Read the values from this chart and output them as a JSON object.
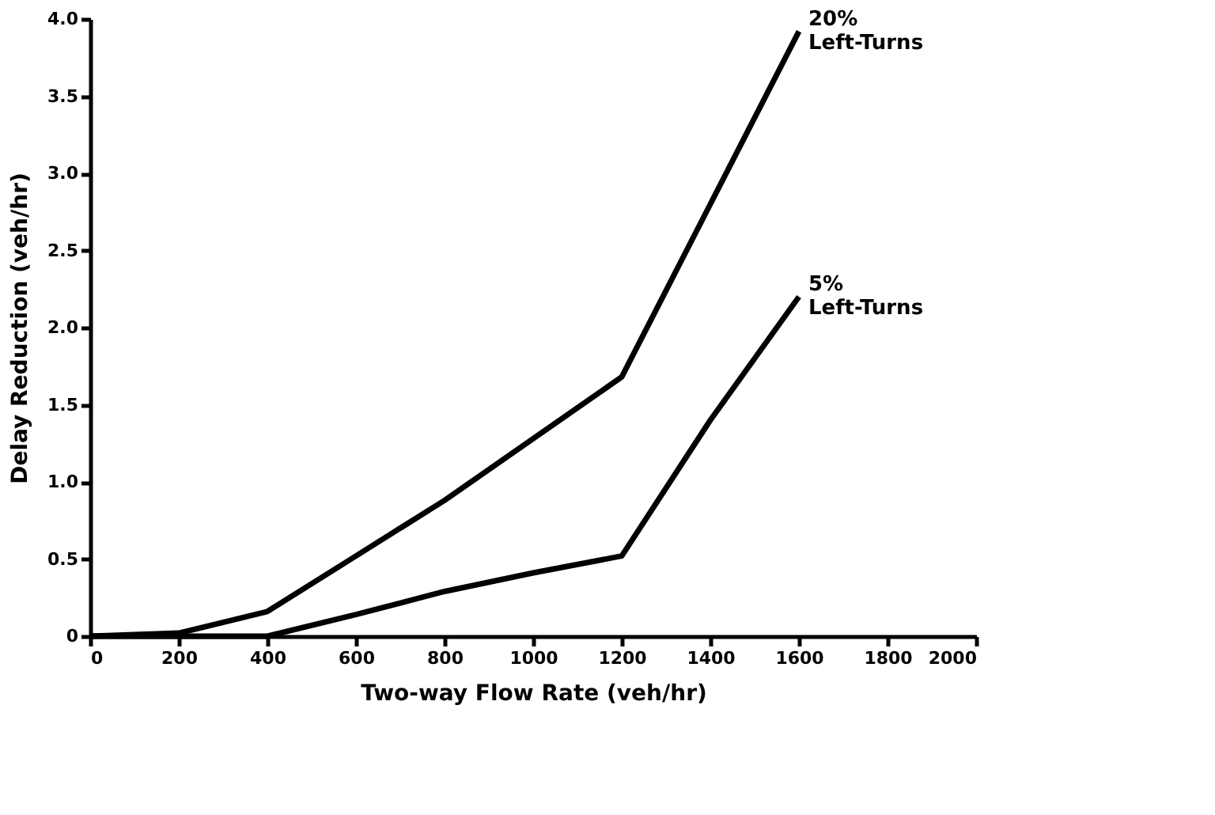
{
  "chart_data": {
    "type": "line",
    "xlabel": "Two-way Flow Rate (veh/hr)",
    "ylabel": "Delay Reduction (veh/hr)",
    "xlim": [
      0,
      2000
    ],
    "xticks": [
      0,
      200,
      400,
      600,
      800,
      1000,
      1200,
      1400,
      1600,
      1800,
      2000
    ],
    "ylim": [
      0,
      4
    ],
    "yticks": [
      0,
      {
        "value": 0.5,
        "label": "0.5"
      },
      {
        "value": 1,
        "label": "1.0"
      },
      {
        "value": 1.5,
        "label": "1.5"
      },
      {
        "value": 2,
        "label": "2.0"
      },
      {
        "value": 2.5,
        "label": "2.5"
      },
      {
        "value": 3,
        "label": "3.0"
      },
      {
        "value": 3.5,
        "label": "3.5"
      },
      {
        "value": 4,
        "label": "4.0"
      }
    ],
    "grid": false,
    "legend": false,
    "marker": "none",
    "line_style": "solid",
    "series": [
      {
        "name": "20% Left-Turns",
        "color": "#000000",
        "x": [
          0,
          200,
          400,
          600,
          800,
          1000,
          1200,
          1400,
          1600
        ],
        "values": [
          0,
          0.02,
          0.16,
          0.52,
          0.88,
          1.28,
          1.68,
          2.8,
          3.92
        ]
      },
      {
        "name": "5% Left-Turns",
        "color": "#000000",
        "x": [
          0,
          400,
          600,
          800,
          1000,
          1200,
          1400,
          1600
        ],
        "values": [
          0,
          0,
          0.14,
          0.29,
          0.41,
          0.52,
          1.4,
          2.2
        ]
      }
    ]
  }
}
